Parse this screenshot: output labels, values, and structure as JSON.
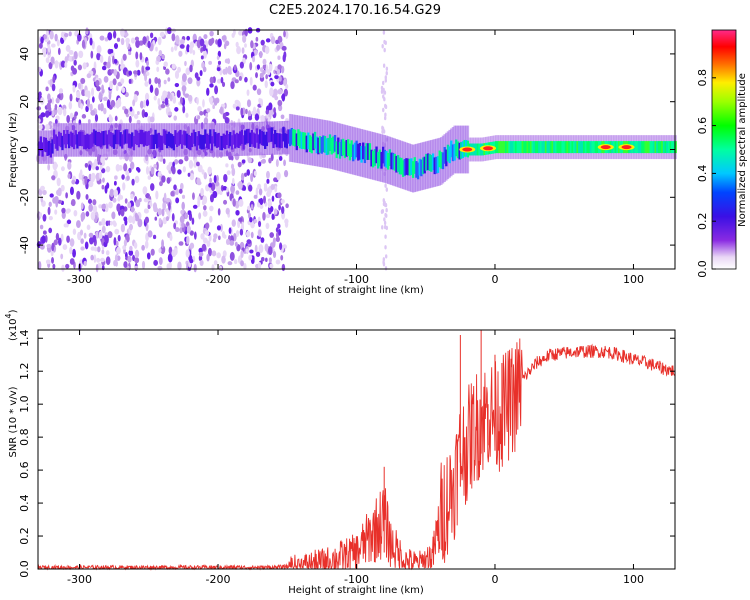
{
  "title": "C2E5.2024.170.16.54.G29",
  "chart_data": [
    {
      "type": "heatmap",
      "xlabel": "Height of straight line (km)",
      "ylabel": "Frequency (Hz)",
      "xlim": [
        -330,
        130
      ],
      "ylim": [
        -50,
        50
      ],
      "xticks": [
        -300,
        -200,
        -100,
        0,
        100
      ],
      "yticks": [
        -40,
        -20,
        0,
        20,
        40
      ],
      "colorbar": {
        "label": "Normalized spectral amplitude",
        "range": [
          0.0,
          1.0
        ],
        "ticks": [
          0.0,
          0.2,
          0.4,
          0.6,
          0.8
        ],
        "colormap": "rainbow (purple-blue-cyan-green-yellow-red-pink)"
      },
      "description_points": {
        "noise_region_x": [
          -330,
          -150
        ],
        "center_line_freq": [
          {
            "x": -320,
            "y": 4
          },
          {
            "x": -250,
            "y": 4
          },
          {
            "x": -200,
            "y": 4
          },
          {
            "x": -150,
            "y": 5
          },
          {
            "x": -120,
            "y": 2
          },
          {
            "x": -100,
            "y": -1
          },
          {
            "x": -80,
            "y": -4
          },
          {
            "x": -60,
            "y": -8
          },
          {
            "x": -40,
            "y": -5
          },
          {
            "x": -30,
            "y": 0
          },
          {
            "x": -10,
            "y": 0
          },
          {
            "x": 0,
            "y": 1
          },
          {
            "x": 50,
            "y": 1
          },
          {
            "x": 80,
            "y": 1
          },
          {
            "x": 100,
            "y": 1
          },
          {
            "x": 130,
            "y": 1
          }
        ],
        "peaks": [
          {
            "x": -20,
            "amp": 0.95
          },
          {
            "x": -5,
            "amp": 0.9
          },
          {
            "x": 80,
            "amp": 0.9
          },
          {
            "x": 95,
            "amp": 0.85
          }
        ]
      }
    },
    {
      "type": "line",
      "xlabel": "Height of straight line (km)",
      "ylabel": "SNR (10 * v/v)",
      "y_scale_label": "(x10",
      "y_scale_exp": "4",
      "y_scale_close": ")",
      "xlim": [
        -330,
        130
      ],
      "ylim": [
        0,
        1.45
      ],
      "xticks": [
        -300,
        -200,
        -100,
        0,
        100
      ],
      "yticks": [
        "0.0",
        "0.2",
        "0.4",
        "0.6",
        "0.8",
        "1.0",
        "1.2",
        "1.4"
      ],
      "color": "#e8302a",
      "series": [
        {
          "x": [
            -330,
            -300,
            -250,
            -200,
            -160,
            -140,
            -120,
            -100,
            -90,
            -80,
            -75,
            -65,
            -55,
            -45,
            -38,
            -30,
            -25,
            -20,
            -15,
            -10,
            -5,
            0,
            5,
            10,
            15,
            20,
            30,
            40,
            50,
            60,
            70,
            80,
            90,
            100,
            110,
            120,
            130
          ],
          "values": [
            0.01,
            0.01,
            0.01,
            0.01,
            0.01,
            0.02,
            0.05,
            0.1,
            0.2,
            0.3,
            0.15,
            0.05,
            0.03,
            0.08,
            0.35,
            0.5,
            0.7,
            0.75,
            0.85,
            0.9,
            0.95,
            0.92,
            0.95,
            1.0,
            1.05,
            1.15,
            1.25,
            1.3,
            1.31,
            1.32,
            1.32,
            1.32,
            1.3,
            1.27,
            1.25,
            1.22,
            1.2
          ]
        }
      ],
      "spikes": [
        {
          "x": -80,
          "y": 0.62
        },
        {
          "x": -25,
          "y": 1.42
        },
        {
          "x": -10,
          "y": 1.45
        },
        {
          "x": -5,
          "y": 1.0
        },
        {
          "x": 0,
          "y": 1.3
        },
        {
          "x": 5,
          "y": 1.25
        }
      ]
    }
  ]
}
